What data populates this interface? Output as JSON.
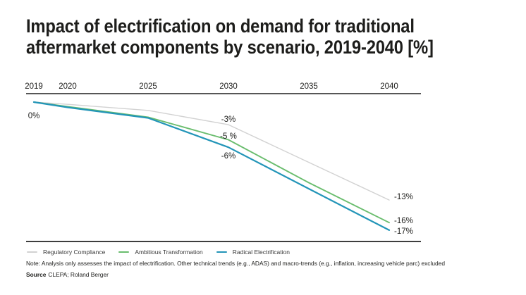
{
  "header": {
    "title_line1": "Impact of electrification on demand for traditional",
    "title_line2": "aftermarket components by scenario, 2019-2040 [%]"
  },
  "chart_data": {
    "type": "line",
    "title": "Impact of electrification on demand for traditional aftermarket components by scenario, 2019-2040 [%]",
    "x_labels": [
      "2019",
      "2020",
      "2025",
      "2030",
      "2035",
      "2040"
    ],
    "x": [
      2019,
      2020,
      2025,
      2030,
      2035,
      2040
    ],
    "ylim": [
      -17,
      0
    ],
    "grid": false,
    "legend_position": "bottom",
    "axis_color": "#3e3e3e",
    "series": [
      {
        "name": "Regulatory Compliance",
        "color": "#d2d2d2",
        "values": [
          0,
          -0.3,
          -1.1,
          -3,
          -8,
          -13
        ]
      },
      {
        "name": "Ambitious Transformation",
        "color": "#6abd6e",
        "values": [
          0,
          -0.6,
          -2.0,
          -5,
          -10.7,
          -16
        ]
      },
      {
        "name": "Radical Electrification",
        "color": "#2395b8",
        "values": [
          0,
          -0.7,
          -2.1,
          -6,
          -11.5,
          -17
        ]
      }
    ],
    "annotations": {
      "start_label": "0%",
      "mid_labels": [
        "-3%",
        "-5 %",
        "-6%"
      ],
      "end_labels": [
        "-13%",
        "-16%",
        "-17%"
      ]
    }
  },
  "footer": {
    "note": "Note: Analysis only assesses the impact of electrification. Other technical trends (e.g., ADAS) and macro-trends (e.g., inflation, increasing vehicle parc) excluded",
    "source_label": "Source",
    "source_text": "CLEPA; Roland Berger"
  }
}
